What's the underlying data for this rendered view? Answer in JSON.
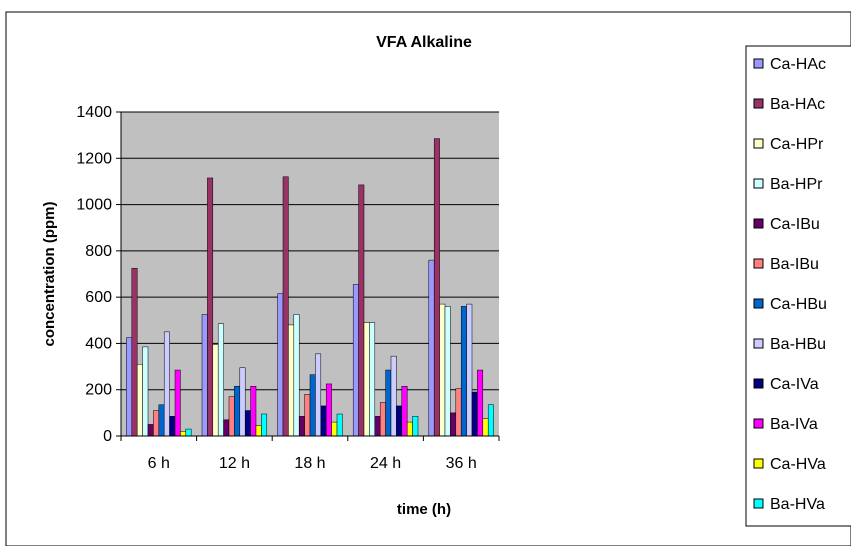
{
  "chart_data": {
    "type": "bar",
    "title": "VFA Alkaline",
    "xlabel": "time (h)",
    "ylabel": "concentration  (ppm)",
    "categories": [
      "6 h",
      "12 h",
      "18 h",
      "24 h",
      "36 h"
    ],
    "ylim": [
      0,
      1400
    ],
    "yticks": [
      0,
      200,
      400,
      600,
      800,
      1000,
      1200,
      1400
    ],
    "grid": true,
    "legend_position": "right",
    "plot_background": "#c0c0c0",
    "series": [
      {
        "name": "Ca-HAc",
        "color": "#9999ff",
        "values": [
          425,
          525,
          615,
          655,
          760
        ]
      },
      {
        "name": "Ba-HAc",
        "color": "#993366",
        "values": [
          725,
          1115,
          1120,
          1085,
          1285
        ]
      },
      {
        "name": "Ca-HPr",
        "color": "#ffffcc",
        "values": [
          310,
          395,
          480,
          490,
          570
        ]
      },
      {
        "name": "Ba-HPr",
        "color": "#ccffff",
        "values": [
          385,
          485,
          525,
          490,
          560
        ]
      },
      {
        "name": "Ca-IBu",
        "color": "#660066",
        "values": [
          50,
          70,
          85,
          85,
          100
        ]
      },
      {
        "name": "Ba-IBu",
        "color": "#ff8080",
        "values": [
          110,
          170,
          180,
          145,
          205
        ]
      },
      {
        "name": "Ca-HBu",
        "color": "#0066cc",
        "values": [
          135,
          215,
          265,
          285,
          560
        ]
      },
      {
        "name": "Ba-HBu",
        "color": "#ccccff",
        "values": [
          450,
          295,
          355,
          345,
          570
        ]
      },
      {
        "name": "Ca-IVa",
        "color": "#000080",
        "values": [
          85,
          110,
          130,
          130,
          190
        ]
      },
      {
        "name": "Ba-IVa",
        "color": "#ff00ff",
        "values": [
          285,
          215,
          225,
          215,
          285
        ]
      },
      {
        "name": "Ca-HVa",
        "color": "#ffff00",
        "values": [
          20,
          45,
          60,
          60,
          75
        ]
      },
      {
        "name": "Ba-HVa",
        "color": "#00ffff",
        "values": [
          30,
          95,
          95,
          85,
          135
        ]
      }
    ]
  }
}
